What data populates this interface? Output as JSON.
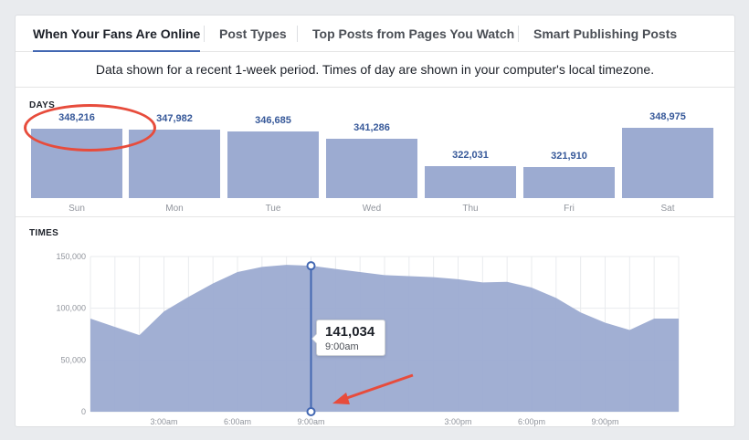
{
  "tabs": [
    {
      "label": "When Your Fans Are Online",
      "active": true
    },
    {
      "label": "Post Types",
      "active": false
    },
    {
      "label": "Top Posts from Pages You Watch",
      "active": false
    },
    {
      "label": "Smart Publishing Posts",
      "active": false
    }
  ],
  "info_text": "Data shown for a recent 1-week period. Times of day are shown in your computer's local timezone.",
  "days_label": "DAYS",
  "times_label": "TIMES",
  "colors": {
    "bar": "#9cabd1",
    "value": "#365899",
    "accent": "#4267b2",
    "annotation": "#e74c3c"
  },
  "chart_data": [
    {
      "type": "bar",
      "title": "DAYS",
      "categories": [
        "Sun",
        "Mon",
        "Tue",
        "Wed",
        "Thu",
        "Fri",
        "Sat"
      ],
      "values": [
        348216,
        347982,
        346685,
        341286,
        322031,
        321910,
        348975
      ],
      "value_labels": [
        "348,216",
        "347,982",
        "346,685",
        "341,286",
        "322,031",
        "321,910",
        "348,975"
      ]
    },
    {
      "type": "area",
      "title": "TIMES",
      "x_ticks": [
        "3:00am",
        "6:00am",
        "9:00am",
        "3:00pm",
        "6:00pm",
        "9:00pm"
      ],
      "x_tick_hours": [
        3,
        6,
        9,
        15,
        18,
        21
      ],
      "y_ticks": [
        "150,000",
        "100,000",
        "50,000",
        "0"
      ],
      "y_tick_values": [
        150000,
        100000,
        50000,
        0
      ],
      "ylim": [
        0,
        150000
      ],
      "hours": [
        0,
        1,
        2,
        3,
        4,
        5,
        6,
        7,
        8,
        9,
        10,
        11,
        12,
        13,
        14,
        15,
        16,
        17,
        18,
        19,
        20,
        21,
        22,
        23,
        24
      ],
      "values": [
        90000,
        82000,
        74000,
        97000,
        111000,
        124000,
        135000,
        140000,
        142000,
        141034,
        138000,
        135000,
        132000,
        131000,
        130000,
        128000,
        125000,
        125500,
        120000,
        110000,
        96000,
        86000,
        79000,
        90000,
        90000
      ],
      "highlight": {
        "hour": 9,
        "value": "141,034",
        "time": "9:00am"
      }
    }
  ]
}
